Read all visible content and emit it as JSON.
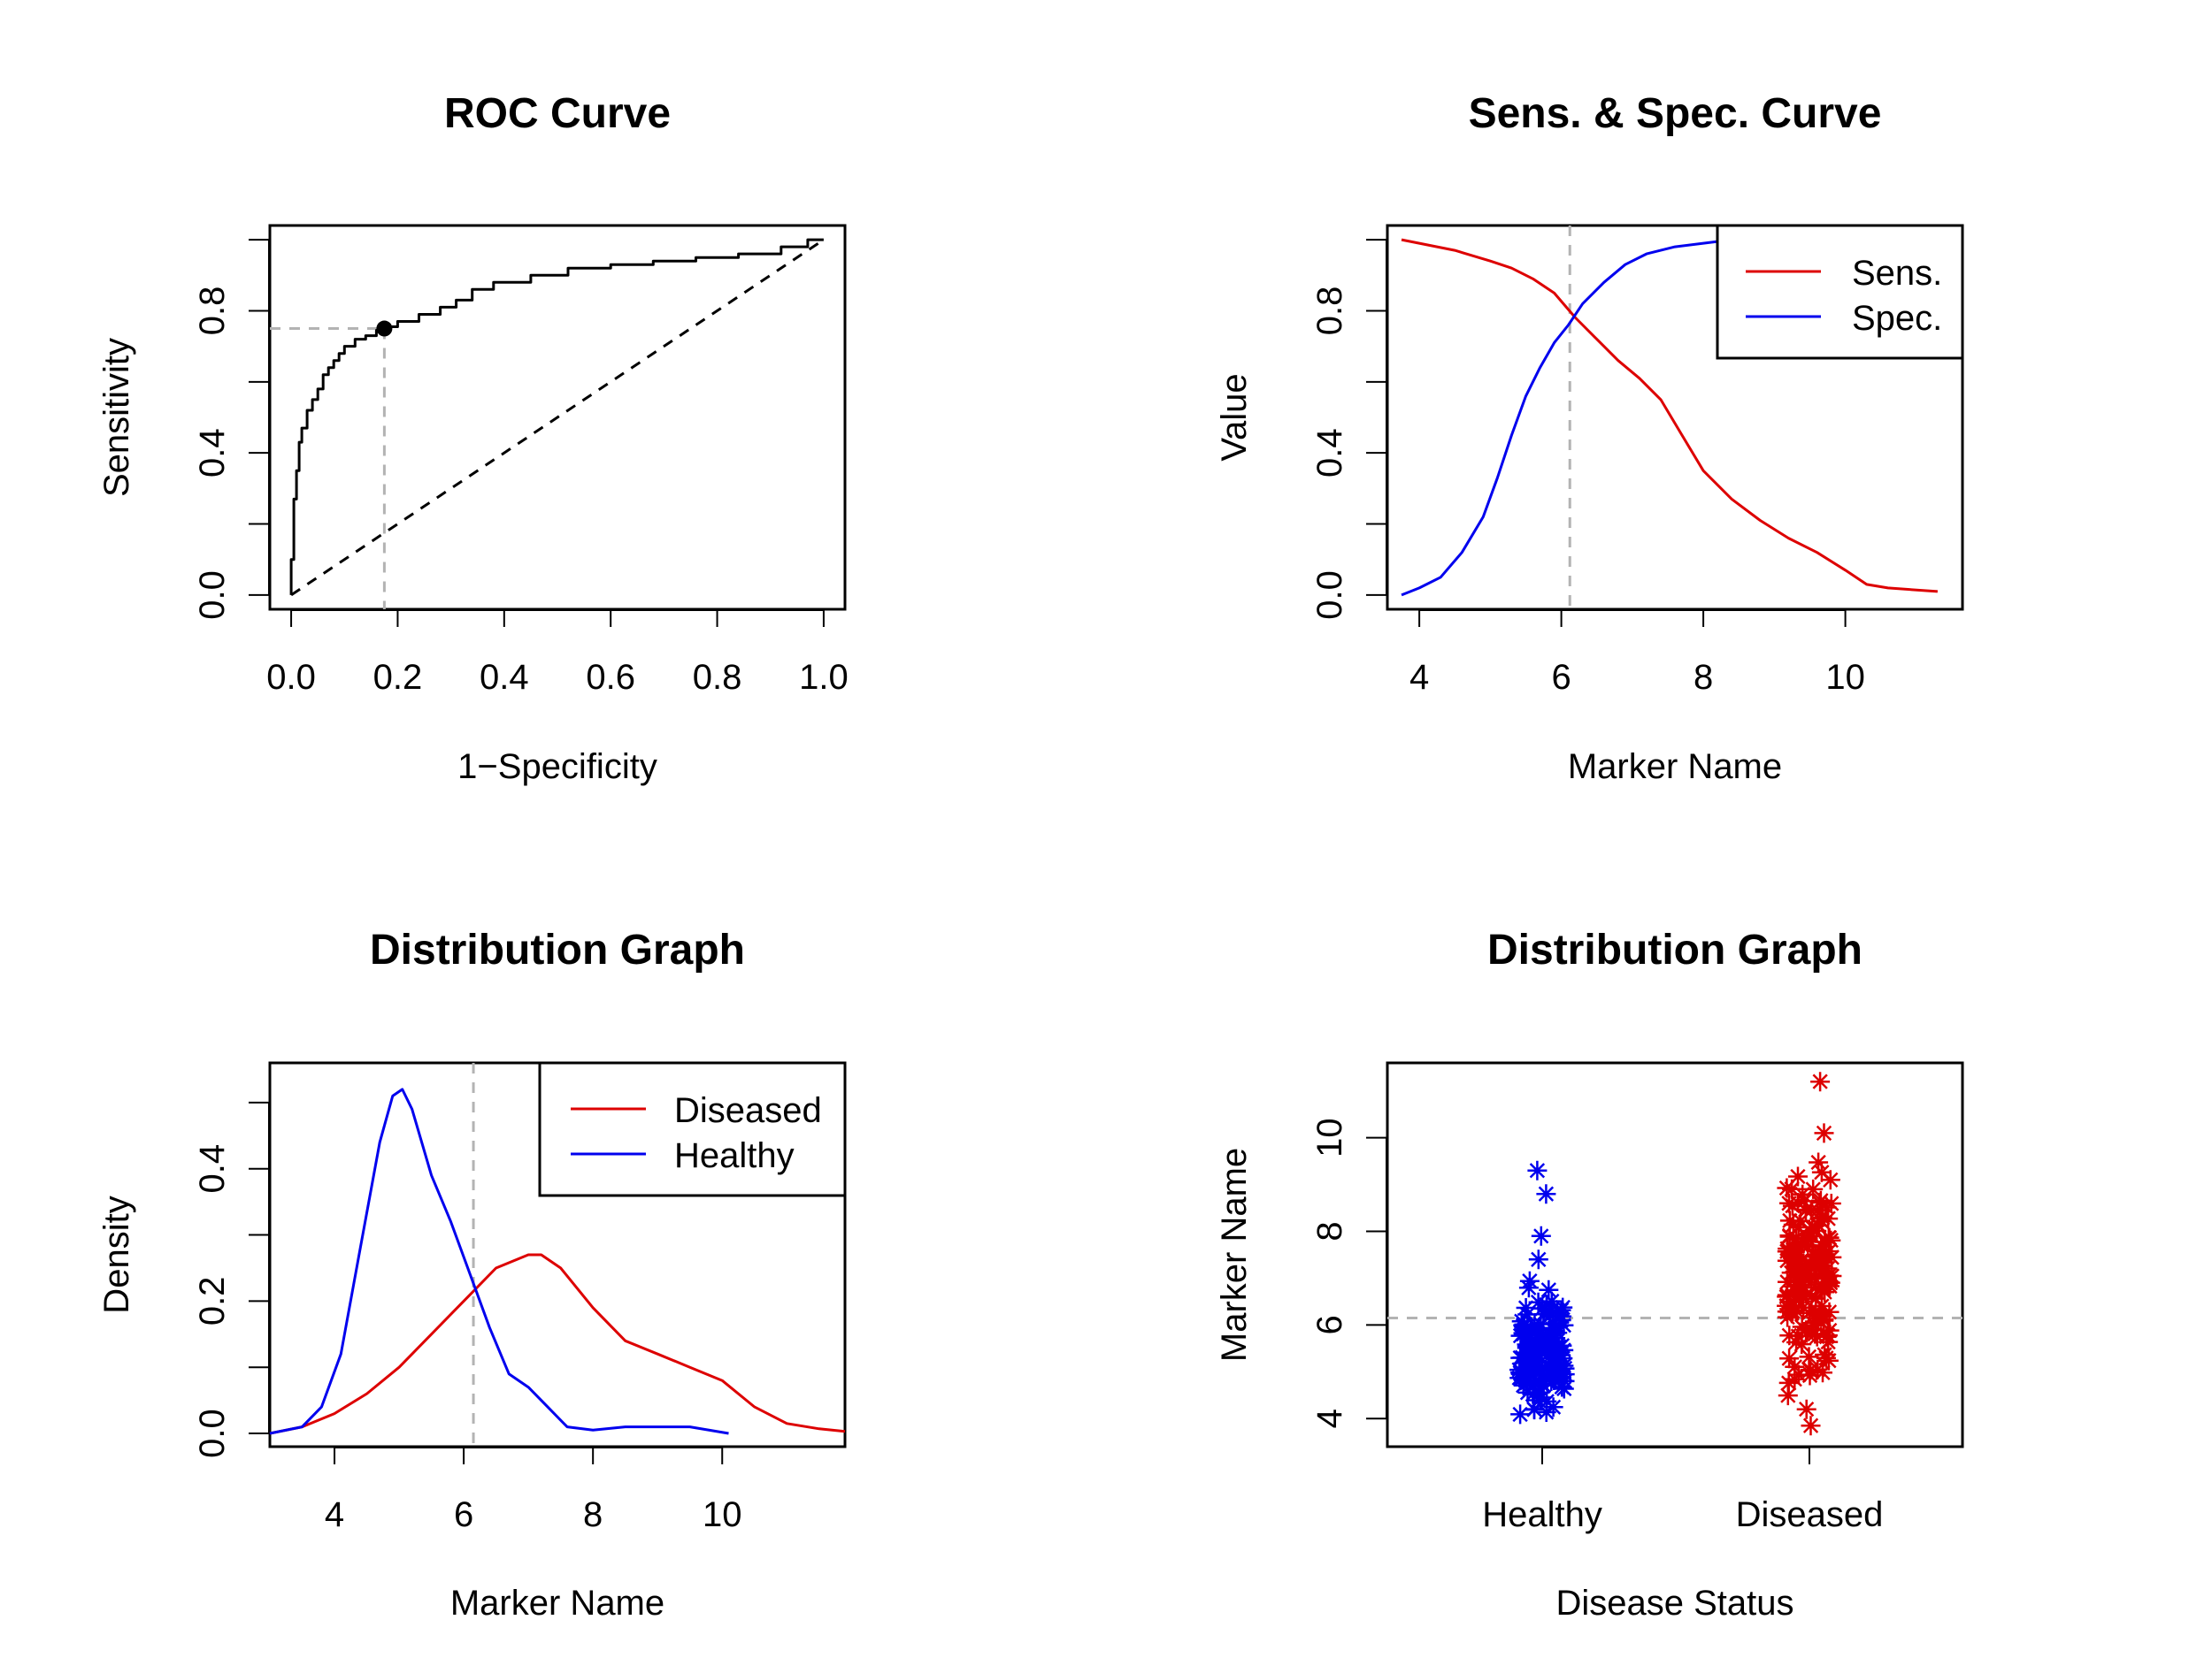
{
  "colors": {
    "sens": "#dd0000",
    "spec": "#0000ee",
    "diseased": "#dd0000",
    "healthy": "#0000ee",
    "reference": "#b3b3b3",
    "axis": "#000000"
  },
  "chart_data": [
    {
      "type": "line",
      "title": "ROC Curve",
      "xlabel": "1−Specificity",
      "ylabel": "Sensitivity",
      "xlim": [
        -0.04,
        1.04
      ],
      "ylim": [
        -0.04,
        1.04
      ],
      "xticks": [
        "0.0",
        "0.2",
        "0.4",
        "0.6",
        "0.8",
        "1.0"
      ],
      "yticks": [
        "0.0",
        "0.4",
        "0.8"
      ],
      "grid": false,
      "series": [
        {
          "style": "step",
          "x": [
            0.0,
            0.0,
            0.005,
            0.005,
            0.01,
            0.01,
            0.015,
            0.015,
            0.02,
            0.02,
            0.03,
            0.03,
            0.04,
            0.04,
            0.05,
            0.05,
            0.06,
            0.06,
            0.07,
            0.07,
            0.08,
            0.08,
            0.09,
            0.09,
            0.1,
            0.1,
            0.12,
            0.12,
            0.14,
            0.14,
            0.16,
            0.16,
            0.175,
            0.175,
            0.2,
            0.2,
            0.24,
            0.24,
            0.28,
            0.28,
            0.31,
            0.31,
            0.34,
            0.34,
            0.38,
            0.38,
            0.45,
            0.45,
            0.52,
            0.52,
            0.6,
            0.6,
            0.68,
            0.68,
            0.76,
            0.76,
            0.84,
            0.84,
            0.92,
            0.92,
            0.97,
            0.97,
            1.0
          ],
          "y": [
            0.0,
            0.1,
            0.1,
            0.27,
            0.27,
            0.35,
            0.35,
            0.43,
            0.43,
            0.47,
            0.47,
            0.52,
            0.52,
            0.55,
            0.55,
            0.58,
            0.58,
            0.62,
            0.62,
            0.64,
            0.64,
            0.66,
            0.66,
            0.68,
            0.68,
            0.7,
            0.7,
            0.72,
            0.72,
            0.73,
            0.73,
            0.745,
            0.745,
            0.755,
            0.755,
            0.77,
            0.77,
            0.79,
            0.79,
            0.81,
            0.81,
            0.83,
            0.83,
            0.86,
            0.86,
            0.88,
            0.88,
            0.9,
            0.9,
            0.92,
            0.92,
            0.93,
            0.93,
            0.94,
            0.94,
            0.95,
            0.95,
            0.96,
            0.96,
            0.98,
            0.98,
            1.0,
            1.0
          ]
        },
        {
          "style": "dashed-diagonal",
          "x": [
            0.0,
            1.0
          ],
          "y": [
            0.0,
            1.0
          ]
        }
      ],
      "cutoff_point": {
        "x": 0.175,
        "y": 0.75
      }
    },
    {
      "type": "line",
      "title": "Sens. & Spec. Curve",
      "xlabel": "Marker Name",
      "ylabel": "Value",
      "xlim": [
        3.55,
        11.65
      ],
      "ylim": [
        -0.04,
        1.04
      ],
      "xticks": [
        "4",
        "6",
        "8",
        "10"
      ],
      "yticks": [
        "0.0",
        "0.4",
        "0.8"
      ],
      "cutoff_x": 6.12,
      "legend": {
        "position": "top-right",
        "entries": [
          "Sens.",
          "Spec."
        ]
      },
      "series": [
        {
          "name": "Sens.",
          "x": [
            3.75,
            4.0,
            4.5,
            5.0,
            5.3,
            5.6,
            5.9,
            6.2,
            6.5,
            6.8,
            7.1,
            7.4,
            7.7,
            8.0,
            8.4,
            8.8,
            9.2,
            9.6,
            10.0,
            10.3,
            10.6,
            11.3
          ],
          "y": [
            1.0,
            0.99,
            0.97,
            0.94,
            0.92,
            0.89,
            0.85,
            0.78,
            0.72,
            0.66,
            0.61,
            0.55,
            0.45,
            0.35,
            0.27,
            0.21,
            0.16,
            0.12,
            0.07,
            0.03,
            0.02,
            0.01
          ]
        },
        {
          "name": "Spec.",
          "x": [
            3.75,
            4.0,
            4.3,
            4.6,
            4.9,
            5.1,
            5.3,
            5.5,
            5.7,
            5.9,
            6.1,
            6.3,
            6.6,
            6.9,
            7.2,
            7.6,
            8.0,
            8.4
          ],
          "y": [
            0.0,
            0.02,
            0.05,
            0.12,
            0.22,
            0.33,
            0.45,
            0.56,
            0.64,
            0.71,
            0.76,
            0.82,
            0.88,
            0.93,
            0.96,
            0.98,
            0.99,
            1.0
          ]
        }
      ]
    },
    {
      "type": "line",
      "title": "Distribution Graph",
      "xlabel": "Marker Name",
      "ylabel": "Density",
      "xlim": [
        3.0,
        11.9
      ],
      "ylim": [
        -0.02,
        0.56
      ],
      "xticks": [
        "4",
        "6",
        "8",
        "10"
      ],
      "yticks": [
        "0.0",
        "0.2",
        "0.4"
      ],
      "cutoff_x": 6.15,
      "legend": {
        "position": "top-right",
        "entries": [
          "Diseased",
          "Healthy"
        ]
      },
      "series": [
        {
          "name": "Diseased",
          "x": [
            3.0,
            3.5,
            4.0,
            4.5,
            5.0,
            5.5,
            6.0,
            6.5,
            7.0,
            7.2,
            7.5,
            8.0,
            8.5,
            9.0,
            9.5,
            10.0,
            10.5,
            11.0,
            11.5,
            11.9
          ],
          "y": [
            0.0,
            0.01,
            0.03,
            0.06,
            0.1,
            0.15,
            0.2,
            0.25,
            0.27,
            0.27,
            0.25,
            0.19,
            0.14,
            0.12,
            0.1,
            0.08,
            0.04,
            0.015,
            0.007,
            0.003
          ]
        },
        {
          "name": "Healthy",
          "x": [
            3.0,
            3.5,
            3.8,
            4.1,
            4.4,
            4.7,
            4.9,
            5.05,
            5.2,
            5.5,
            5.8,
            6.1,
            6.4,
            6.7,
            7.0,
            7.3,
            7.6,
            8.0,
            8.5,
            9.0,
            9.5,
            10.1
          ],
          "y": [
            0.0,
            0.01,
            0.04,
            0.12,
            0.28,
            0.44,
            0.51,
            0.52,
            0.49,
            0.39,
            0.32,
            0.24,
            0.16,
            0.09,
            0.07,
            0.04,
            0.01,
            0.005,
            0.01,
            0.01,
            0.01,
            0.0
          ]
        }
      ]
    },
    {
      "type": "scatter",
      "title": "Distribution Graph",
      "xlabel": "Disease Status",
      "ylabel": "Marker Name",
      "categories": [
        "Healthy",
        "Diseased"
      ],
      "ylim": [
        3.4,
        11.6
      ],
      "yticks": [
        "4",
        "6",
        "8",
        "10"
      ],
      "cutoff_y": 6.15,
      "series": [
        {
          "name": "Healthy",
          "group": 0,
          "range": [
            3.75,
            7.3
          ],
          "extra": [
            7.9,
            8.8,
            9.3,
            7.4
          ],
          "count": 140
        },
        {
          "name": "Diseased",
          "group": 1,
          "range": [
            4.0,
            10.2
          ],
          "extra": [
            11.2,
            3.85,
            4.2,
            10.1
          ],
          "count": 170
        }
      ]
    }
  ]
}
